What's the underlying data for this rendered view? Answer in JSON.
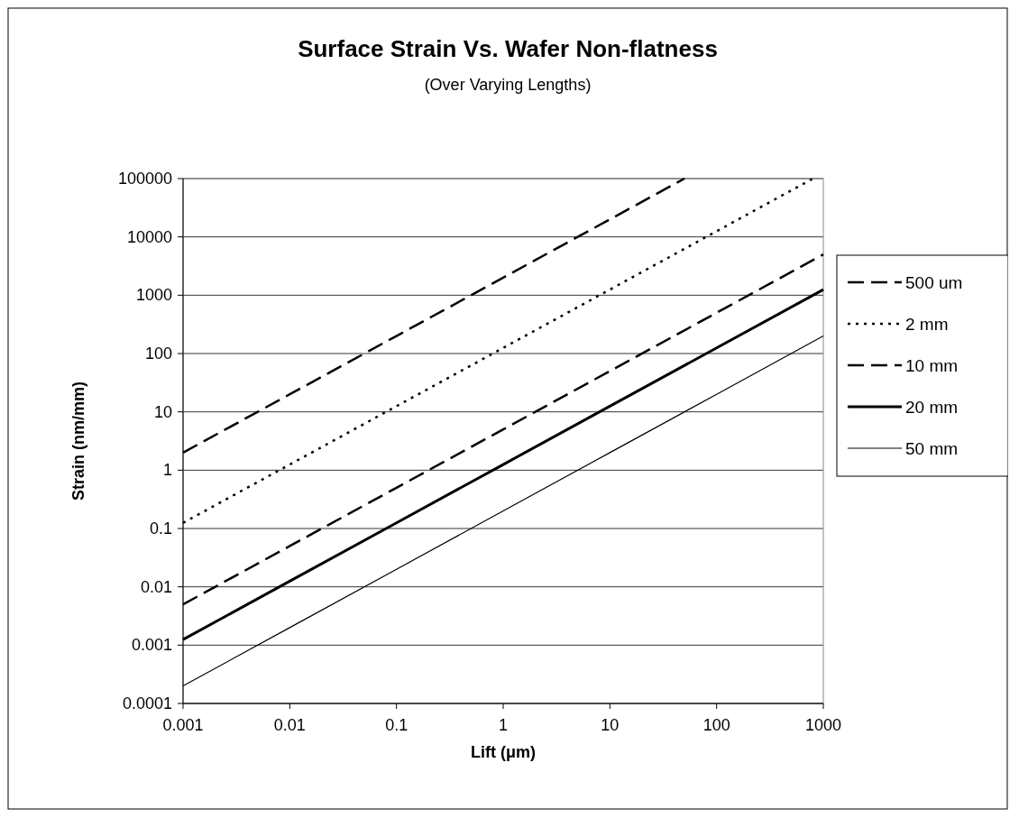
{
  "chart_data": {
    "type": "line",
    "title": "Surface Strain Vs. Wafer Non-flatness",
    "subtitle": "(Over Varying Lengths)",
    "xlabel": "Lift (μm)",
    "ylabel": "Strain (nm/mm)",
    "log": "xy",
    "xlim": [
      0.001,
      1000
    ],
    "xticks": [
      0.001,
      0.01,
      0.1,
      1,
      10,
      100,
      1000
    ],
    "ylim": [
      0.0001,
      100000
    ],
    "yticks": [
      0.0001,
      0.001,
      0.01,
      0.1,
      1,
      10,
      100,
      1000,
      10000,
      100000
    ],
    "grid": "y",
    "legend": "right",
    "series": [
      {
        "name": "500 um",
        "color": "#000000",
        "line_style": "dashed",
        "x": [
          0.001,
          0.01,
          0.1,
          1,
          10,
          50
        ],
        "values": [
          2,
          20,
          200,
          2000,
          20000,
          100000
        ]
      },
      {
        "name": "2 mm",
        "color": "#000000",
        "line_style": "dotted",
        "x": [
          0.001,
          0.01,
          0.1,
          1,
          10,
          100,
          800
        ],
        "values": [
          0.125,
          1.25,
          12.5,
          125,
          1250,
          12500,
          100000
        ]
      },
      {
        "name": "10 mm",
        "color": "#000000",
        "line_style": "dashed",
        "x": [
          0.001,
          0.01,
          0.1,
          1,
          10,
          100,
          1000
        ],
        "values": [
          0.005,
          0.05,
          0.5,
          5,
          50,
          500,
          5000
        ]
      },
      {
        "name": "20 mm",
        "color": "#000000",
        "line_style": "solid",
        "x": [
          0.001,
          0.01,
          0.1,
          1,
          10,
          100,
          1000
        ],
        "values": [
          0.00125,
          0.0125,
          0.125,
          1.25,
          12.5,
          125,
          1250
        ]
      },
      {
        "name": "50 mm",
        "color": "#000000",
        "line_style": "solid",
        "x": [
          0.001,
          0.01,
          0.1,
          1,
          10,
          100,
          1000
        ],
        "values": [
          0.0002,
          0.002,
          0.02,
          0.2,
          2,
          20,
          200
        ]
      }
    ]
  }
}
